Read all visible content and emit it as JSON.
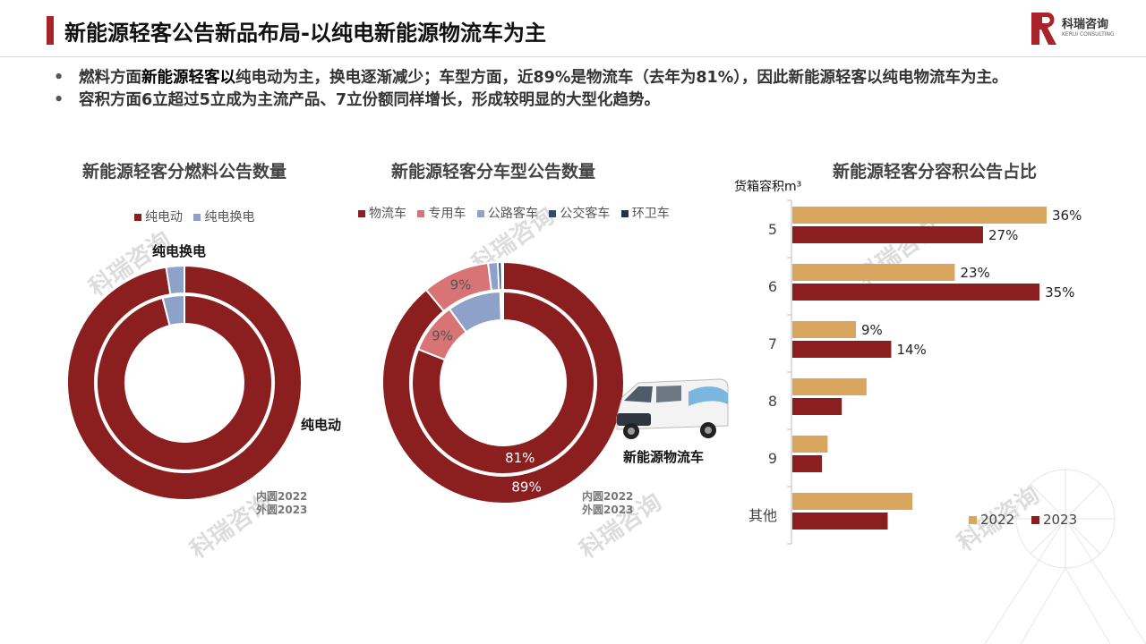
{
  "header": {
    "title": "新能源轻客公告新品布局-以纯电新能源物流车为主",
    "logo_cn": "科瑞咨询",
    "logo_en": "KERUI CONSULTING"
  },
  "bullets": [
    {
      "pre": "燃料方面",
      "bold": "新能源轻客以",
      "post": "纯电动为主，换电逐渐减少；车型方面，近89%是物流车（去年为81%），因此新能源轻客以纯电物流车为主。"
    },
    {
      "pre": "",
      "bold": "",
      "post": "容积方面6立超过5立成为主流产品、7立份额同样增长，形成较明显的大型化趋势。"
    }
  ],
  "watermark_text": "科瑞咨询",
  "colors": {
    "dark_red": "#8b1e1f",
    "light_blue": "#8da1c9",
    "pink": "#d87475",
    "navy": "#2e4a6e",
    "gold": "#d8a65f",
    "accent": "#a8232a"
  },
  "charts": {
    "fuel": {
      "title": "新能源轻客分燃料公告数量",
      "callout_small": "纯电换电",
      "callout_large": "纯电动",
      "note": [
        "内圆2022",
        "外圆2023"
      ]
    },
    "type": {
      "title": "新能源轻客分车型公告数量",
      "van_label": "新能源物流车",
      "note": [
        "内圆2022",
        "外圆2023"
      ]
    },
    "volume": {
      "title": "新能源轻客分容积公告占比",
      "unit_label": "货箱容积m³"
    }
  },
  "chart_data": [
    {
      "type": "pie",
      "subtype": "donut-double",
      "legend": [
        "纯电动",
        "纯电换电"
      ],
      "legend_position": "top",
      "inner_ring": {
        "series": "2022",
        "values": [
          96,
          4
        ]
      },
      "outer_ring": {
        "series": "2023",
        "values": [
          97.5,
          2.5
        ]
      }
    },
    {
      "type": "pie",
      "subtype": "donut-double",
      "legend": [
        "物流车",
        "专用车",
        "公路客车",
        "公交客车",
        "环卫车"
      ],
      "legend_position": "top",
      "inner_ring": {
        "series": "2022",
        "values": [
          81,
          9,
          9.5,
          0.3,
          0.2
        ],
        "labels": [
          "81%",
          "9%",
          "",
          "",
          ""
        ]
      },
      "outer_ring": {
        "series": "2023",
        "values": [
          89,
          9,
          1.3,
          0.5,
          0.2
        ],
        "labels": [
          "89%",
          "9%",
          "",
          "",
          ""
        ]
      }
    },
    {
      "type": "bar",
      "orientation": "horizontal",
      "categories": [
        "5",
        "6",
        "7",
        "8",
        "9",
        "其他"
      ],
      "series": [
        {
          "name": "2022",
          "values": [
            36,
            23,
            9,
            10.5,
            5,
            17
          ],
          "labels": [
            "36%",
            "23%",
            "9%",
            "",
            "",
            ""
          ]
        },
        {
          "name": "2023",
          "values": [
            27,
            35,
            14,
            7,
            4.2,
            13.5
          ],
          "labels": [
            "27%",
            "35%",
            "14%",
            "",
            "",
            ""
          ]
        }
      ],
      "xlim": [
        0,
        40
      ],
      "legend_position": "bottom-right",
      "grid": false
    }
  ]
}
